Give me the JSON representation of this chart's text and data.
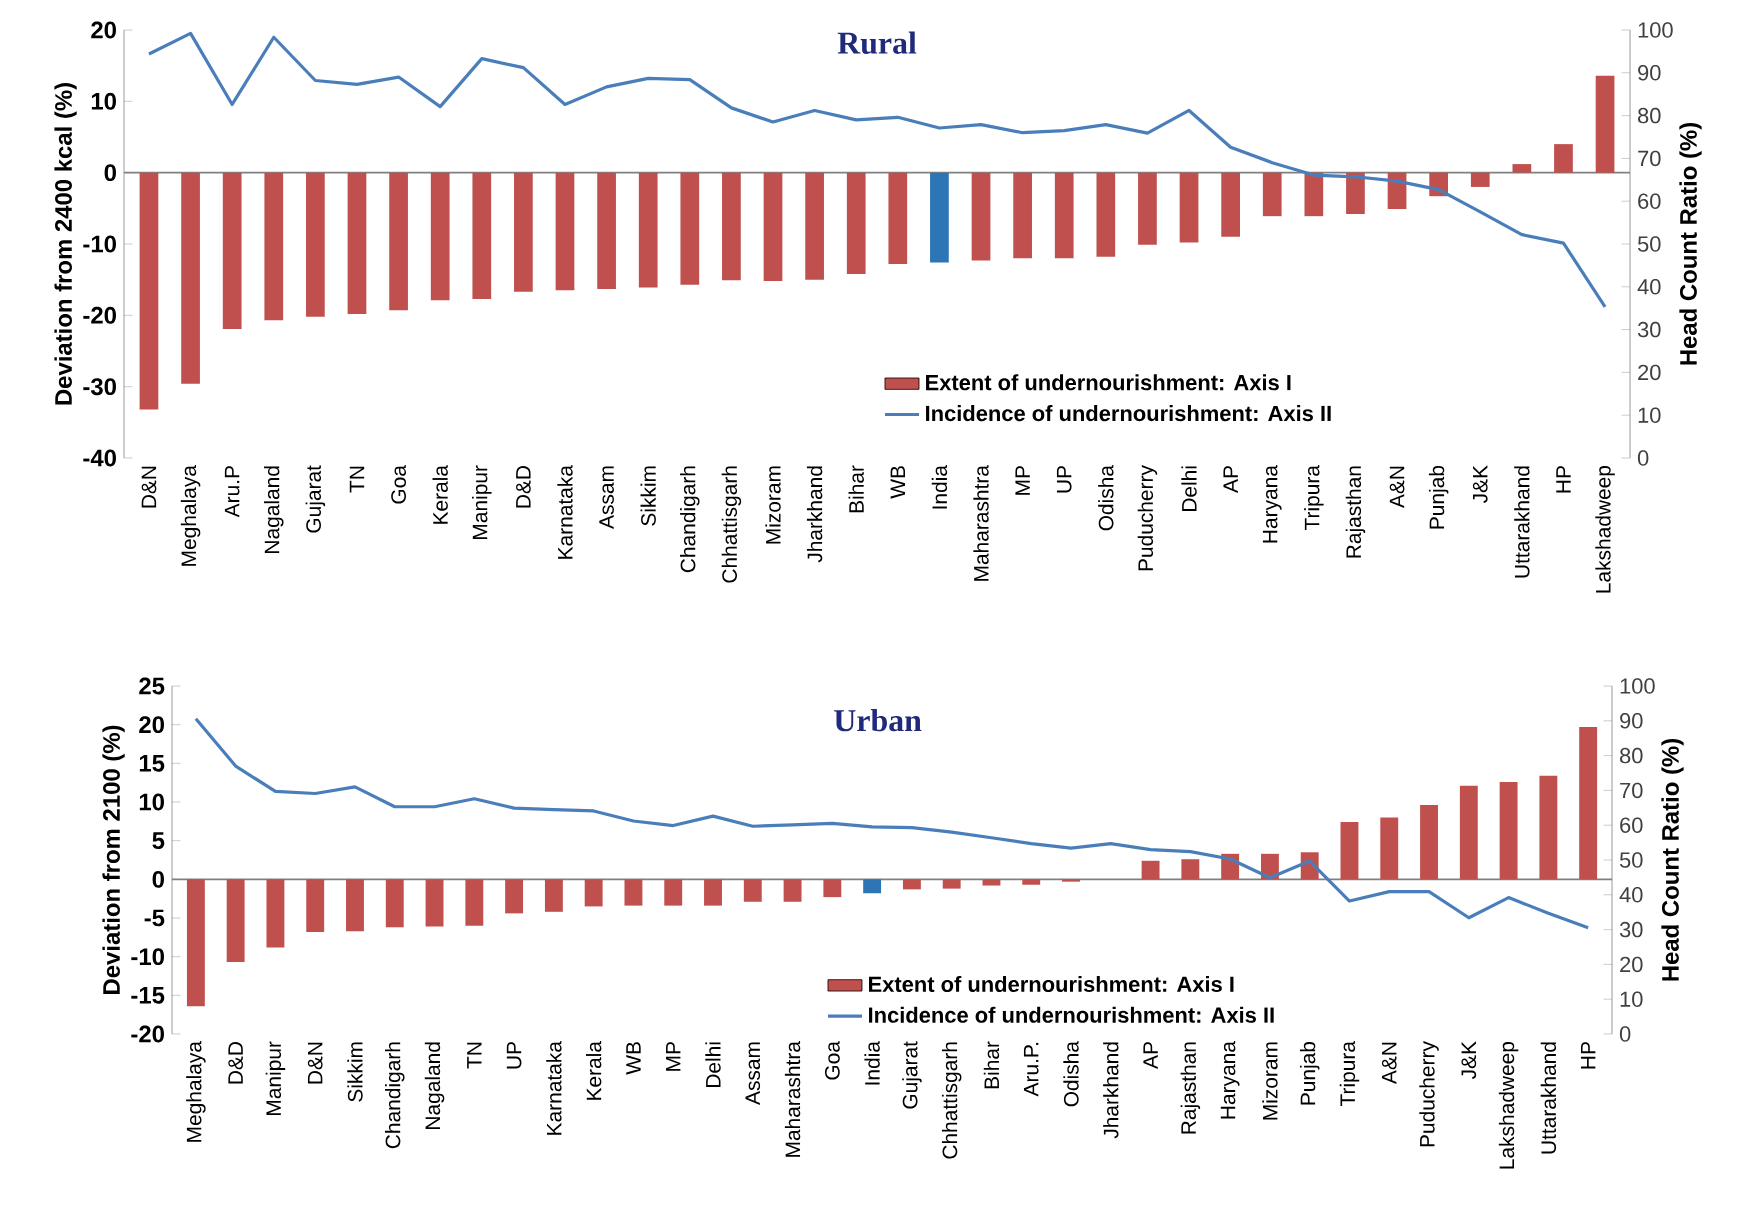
{
  "chart_data": [
    {
      "type": "bar",
      "title": "Rural",
      "ylabel": "Deviation from 2400 kcal (%)",
      "y2label": "Head Count Ratio (%)",
      "categories": [
        "D&N",
        "Meghalaya",
        "Aru.P",
        "Nagaland",
        "Gujarat",
        "TN",
        "Goa",
        "Kerala",
        "Manipur",
        "D&D",
        "Karnataka",
        "Assam",
        "Sikkim",
        "Chandigarh",
        "Chhattisgarh",
        "Mizoram",
        "Jharkhand",
        "Bihar",
        "WB",
        "India",
        "Maharashtra",
        "MP",
        "UP",
        "Odisha",
        "Puducherry",
        "Delhi",
        "AP",
        "Haryana",
        "Tripura",
        "Rajasthan",
        "A&N",
        "Punjab",
        "J&K",
        "Uttarakhand",
        "HP",
        "Lakshadweep"
      ],
      "series": [
        {
          "name": "Extent  of undernourishment: Axis I",
          "color": "#c0504d",
          "colors": [
            "#c0504d",
            "#c0504d",
            "#c0504d",
            "#c0504d",
            "#c0504d",
            "#c0504d",
            "#c0504d",
            "#c0504d",
            "#c0504d",
            "#c0504d",
            "#c0504d",
            "#c0504d",
            "#c0504d",
            "#c0504d",
            "#c0504d",
            "#c0504d",
            "#c0504d",
            "#c0504d",
            "#c0504d",
            "#2e75b6",
            "#c0504d",
            "#c0504d",
            "#c0504d",
            "#c0504d",
            "#c0504d",
            "#c0504d",
            "#c0504d",
            "#c0504d",
            "#c0504d",
            "#c0504d",
            "#c0504d",
            "#c0504d",
            "#c0504d",
            "#c0504d",
            "#c0504d",
            "#c0504d"
          ],
          "values": [
            -33.2,
            -29.6,
            -21.9,
            -20.7,
            -20.2,
            -19.8,
            -19.3,
            -17.9,
            -17.7,
            -16.7,
            -16.5,
            -16.3,
            -16.1,
            -15.7,
            -15.1,
            -15.2,
            -15.0,
            -14.2,
            -12.8,
            -12.6,
            -12.3,
            -12.0,
            -12.0,
            -11.8,
            -10.1,
            -9.8,
            -9.0,
            -6.1,
            -6.1,
            -5.8,
            -5.1,
            -3.3,
            -2.0,
            1.2,
            4.0,
            13.6
          ]
        },
        {
          "name": "Incidence of undernourishment: Axis II",
          "type": "line",
          "axis": "y2",
          "color": "#4a7ebb",
          "values": [
            94.4,
            99.2,
            82.6,
            98.3,
            88.2,
            87.3,
            89.0,
            82.1,
            93.3,
            91.2,
            82.6,
            86.7,
            88.7,
            88.4,
            81.8,
            78.5,
            81.2,
            79.0,
            79.6,
            77.1,
            77.9,
            76.0,
            76.5,
            77.9,
            75.9,
            81.2,
            72.6,
            69.0,
            66.1,
            65.7,
            64.7,
            62.7,
            57.5,
            52.2,
            50.2,
            35.3
          ]
        }
      ],
      "ylim": [
        -40,
        20
      ],
      "yticks": [
        -40,
        -30,
        -20,
        -10,
        0,
        10,
        20
      ],
      "y2lim": [
        0,
        100
      ],
      "y2ticks": [
        0,
        10,
        20,
        30,
        40,
        50,
        60,
        70,
        80,
        90,
        100
      ],
      "legend": "bottom"
    },
    {
      "type": "bar",
      "title": "Urban",
      "ylabel": "Deviation from 2100 (%)",
      "y2label": "Head Count Ratio (%)",
      "categories": [
        "Meghalaya",
        "D&D",
        "Manipur",
        "D&N",
        "Sikkim",
        "Chandigarh",
        "Nagaland",
        "TN",
        "UP",
        "Karnataka",
        "Kerala",
        "WB",
        "MP",
        "Delhi",
        "Assam",
        "Maharashtra",
        "Goa",
        "India",
        "Gujarat",
        "Chhattisgarh",
        "Bihar",
        "Aru.P.",
        "Odisha",
        "Jharkhand",
        "AP",
        "Rajasthan",
        "Haryana",
        "Mizoram",
        "Punjab",
        "Tripura",
        "A&N",
        "Puducherry",
        "J&K",
        "Lakshadweep",
        "Uttarakhand",
        "HP"
      ],
      "series": [
        {
          "name": "Extent  of undernourishment: Axis I",
          "color": "#c0504d",
          "colors": [
            "#c0504d",
            "#c0504d",
            "#c0504d",
            "#c0504d",
            "#c0504d",
            "#c0504d",
            "#c0504d",
            "#c0504d",
            "#c0504d",
            "#c0504d",
            "#c0504d",
            "#c0504d",
            "#c0504d",
            "#c0504d",
            "#c0504d",
            "#c0504d",
            "#c0504d",
            "#2e75b6",
            "#c0504d",
            "#c0504d",
            "#c0504d",
            "#c0504d",
            "#c0504d",
            "#c0504d",
            "#c0504d",
            "#c0504d",
            "#c0504d",
            "#c0504d",
            "#c0504d",
            "#c0504d",
            "#c0504d",
            "#c0504d",
            "#c0504d",
            "#c0504d",
            "#c0504d",
            "#c0504d"
          ],
          "values": [
            -16.4,
            -10.7,
            -8.8,
            -6.8,
            -6.7,
            -6.2,
            -6.1,
            -6.0,
            -4.4,
            -4.2,
            -3.5,
            -3.4,
            -3.4,
            -3.4,
            -2.9,
            -2.9,
            -2.3,
            -1.8,
            -1.3,
            -1.2,
            -0.8,
            -0.7,
            -0.3,
            0.0,
            2.4,
            2.6,
            3.3,
            3.3,
            3.5,
            7.4,
            8.0,
            9.6,
            12.1,
            12.6,
            13.4,
            19.7
          ]
        },
        {
          "name": "Incidence of undernourishment: Axis II",
          "type": "line",
          "axis": "y2",
          "color": "#4a7ebb",
          "values": [
            90.6,
            77.0,
            69.7,
            69.1,
            71.0,
            65.3,
            65.3,
            67.6,
            64.9,
            64.5,
            64.1,
            61.2,
            59.9,
            62.6,
            59.7,
            60.1,
            60.5,
            59.5,
            59.3,
            58.0,
            56.4,
            54.7,
            53.4,
            54.7,
            53.0,
            52.4,
            50.3,
            44.9,
            49.7,
            38.2,
            40.9,
            40.9,
            33.4,
            39.2,
            34.7,
            30.5
          ]
        }
      ],
      "ylim": [
        -20,
        25
      ],
      "yticks": [
        -20,
        -15,
        -10,
        -5,
        0,
        5,
        10,
        15,
        20,
        25
      ],
      "y2lim": [
        0,
        100
      ],
      "y2ticks": [
        0,
        10,
        20,
        30,
        40,
        50,
        60,
        70,
        80,
        90,
        100
      ],
      "legend": "bottom"
    }
  ]
}
